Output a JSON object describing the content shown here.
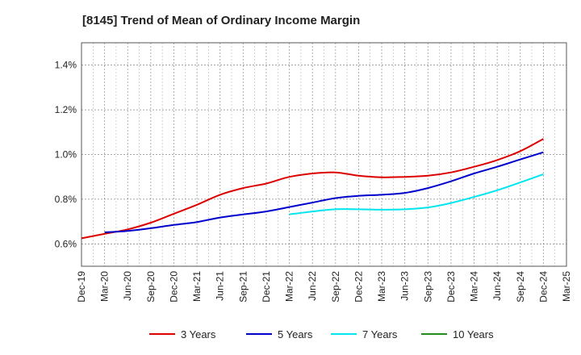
{
  "chart_data": {
    "type": "line",
    "title": "[8145]  Trend of Mean of Ordinary Income Margin",
    "xlabel": "",
    "ylabel": "",
    "x": [
      "Dec-19",
      "Mar-20",
      "Jun-20",
      "Sep-20",
      "Dec-20",
      "Mar-21",
      "Jun-21",
      "Sep-21",
      "Dec-21",
      "Mar-22",
      "Jun-22",
      "Sep-22",
      "Dec-22",
      "Mar-23",
      "Jun-23",
      "Sep-23",
      "Dec-23",
      "Mar-24",
      "Jun-24",
      "Sep-24",
      "Dec-24",
      "Mar-25"
    ],
    "ylim": [
      0.5,
      1.5
    ],
    "yticks": [
      0.6,
      0.8,
      1.0,
      1.2,
      1.4
    ],
    "ytick_labels": [
      "0.6%",
      "0.8%",
      "1.0%",
      "1.2%",
      "1.4%"
    ],
    "grid": true,
    "legend_position": "bottom",
    "series": [
      {
        "name": "3 Years",
        "color": "#dd0000",
        "values": [
          0.625,
          0.645,
          0.665,
          0.695,
          0.735,
          0.775,
          0.82,
          0.85,
          0.87,
          0.9,
          0.915,
          0.92,
          0.905,
          0.898,
          0.9,
          0.905,
          0.92,
          0.945,
          0.975,
          1.015,
          1.07,
          null
        ]
      },
      {
        "name": "5 Years",
        "color": "#0000cc",
        "values": [
          null,
          0.652,
          0.658,
          0.67,
          0.685,
          0.698,
          0.718,
          0.732,
          0.745,
          0.765,
          0.785,
          0.805,
          0.815,
          0.82,
          0.828,
          0.85,
          0.88,
          0.915,
          0.945,
          0.978,
          1.01,
          null
        ]
      },
      {
        "name": "7 Years",
        "color": "#00e5ee",
        "values": [
          null,
          null,
          null,
          null,
          null,
          null,
          null,
          null,
          null,
          0.732,
          0.745,
          0.755,
          0.755,
          0.753,
          0.755,
          0.763,
          0.783,
          0.81,
          0.84,
          0.875,
          0.912,
          null
        ]
      },
      {
        "name": "10 Years",
        "color": "#228b22",
        "values": [
          null,
          null,
          null,
          null,
          null,
          null,
          null,
          null,
          null,
          null,
          null,
          null,
          null,
          null,
          null,
          null,
          null,
          null,
          null,
          null,
          null,
          null
        ]
      }
    ]
  }
}
